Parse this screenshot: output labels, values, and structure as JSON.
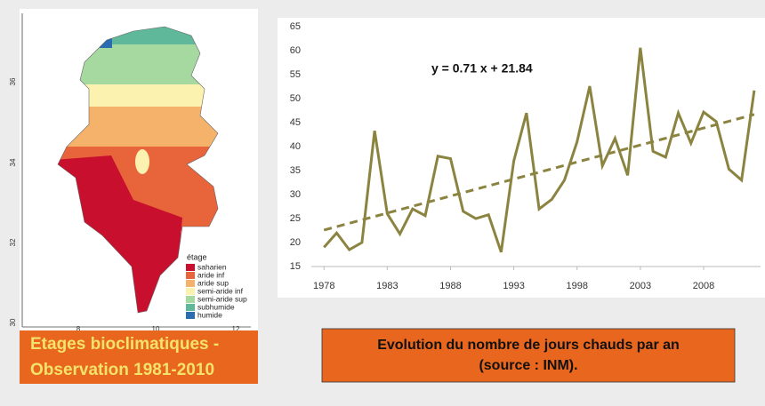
{
  "chart_data": {
    "type": "line",
    "x": [
      1978,
      1979,
      1980,
      1981,
      1982,
      1983,
      1984,
      1985,
      1986,
      1987,
      1988,
      1989,
      1990,
      1991,
      1992,
      1993,
      1994,
      1995,
      1996,
      1997,
      1998,
      1999,
      2000,
      2001,
      2002,
      2003,
      2004,
      2005,
      2006,
      2007,
      2008,
      2009,
      2010,
      2011,
      2012
    ],
    "series": [
      {
        "color": "#8b8440",
        "values": [
          19,
          22,
          18.5,
          20,
          43.3,
          26,
          21.8,
          27,
          25.6,
          38,
          37.5,
          26.5,
          25,
          25.8,
          18,
          37,
          47,
          27,
          29,
          33,
          41,
          52.6,
          36,
          41.7,
          34,
          60.6,
          39,
          37.8,
          47,
          40.7,
          47.2,
          45.2,
          35.3,
          33,
          51.7
        ]
      }
    ],
    "trendline": {
      "label": "y = 0.71 x + 21.84",
      "color": "#8b8440",
      "x": [
        1978,
        2012
      ],
      "values": [
        22.6,
        46.7
      ]
    },
    "xlim": [
      1977,
      2012.5
    ],
    "xticks": [
      1978,
      1983,
      1988,
      1993,
      1998,
      2003,
      2008
    ],
    "ylim": [
      15,
      65
    ],
    "yticks": [
      15,
      20,
      25,
      30,
      35,
      40,
      45,
      50,
      55,
      60,
      65
    ],
    "grid": false
  },
  "map": {
    "yticks": [
      "36",
      "34",
      "32",
      "30"
    ],
    "xticks": [
      "8",
      "10",
      "12"
    ],
    "legend_title": "étage",
    "legend": [
      {
        "name": "saharien",
        "color": "#c8102e"
      },
      {
        "name": "aride inf",
        "color": "#e8643a"
      },
      {
        "name": "aride sup",
        "color": "#f5b26b"
      },
      {
        "name": "semi-aride inf",
        "color": "#fbf2b0"
      },
      {
        "name": "semi-aride sup",
        "color": "#a6d9a0"
      },
      {
        "name": "subhumide",
        "color": "#5fb89a"
      },
      {
        "name": "humide",
        "color": "#2b6db0"
      }
    ]
  },
  "captions": {
    "map": [
      "Etages bioclimatiques -",
      "Observation 1981-2010"
    ],
    "chart": [
      "Evolution du nombre de jours chauds par an",
      "(source : INM)."
    ]
  }
}
